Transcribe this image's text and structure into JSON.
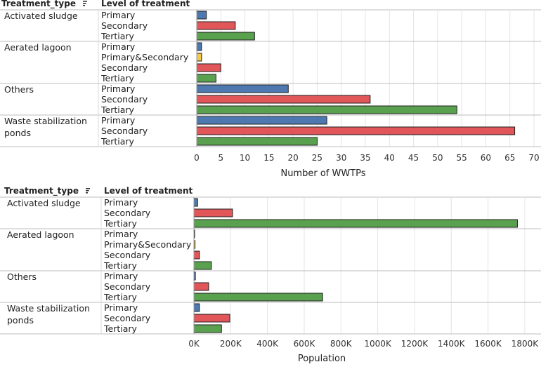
{
  "colors": {
    "Primary": "#4e79b0",
    "Primary&Secondary": "#f2c94c",
    "Secondary": "#e15759",
    "Tertiary": "#59a14f",
    "grid": "#e4e4e4",
    "rowline": "#bdbdbd"
  },
  "sort_icon": "sort-descending-icon",
  "chart_data": [
    {
      "type": "bar",
      "orientation": "horizontal",
      "col1_header": "Treatment_type",
      "col2_header": "Level of treatment",
      "xlabel": "Number of WWTPs",
      "xlim": [
        0,
        70
      ],
      "ticks": [
        "0",
        "5",
        "10",
        "15",
        "20",
        "25",
        "30",
        "35",
        "40",
        "45",
        "50",
        "55",
        "60",
        "65",
        "70"
      ],
      "tick_values": [
        0,
        5,
        10,
        15,
        20,
        25,
        30,
        35,
        40,
        45,
        50,
        55,
        60,
        65,
        70
      ],
      "groups": [
        {
          "name": [
            "Activated sludge"
          ],
          "bars": [
            {
              "level": "Primary",
              "value": 2
            },
            {
              "level": "Secondary",
              "value": 8
            },
            {
              "level": "Tertiary",
              "value": 12
            }
          ]
        },
        {
          "name": [
            "Aerated lagoon"
          ],
          "bars": [
            {
              "level": "Primary",
              "value": 1
            },
            {
              "level": "Primary&Secondary",
              "value": 1
            },
            {
              "level": "Secondary",
              "value": 5
            },
            {
              "level": "Tertiary",
              "value": 4
            }
          ]
        },
        {
          "name": [
            "Others"
          ],
          "bars": [
            {
              "level": "Primary",
              "value": 19
            },
            {
              "level": "Secondary",
              "value": 36
            },
            {
              "level": "Tertiary",
              "value": 54
            }
          ]
        },
        {
          "name": [
            "Waste stabilization",
            "ponds"
          ],
          "bars": [
            {
              "level": "Primary",
              "value": 27
            },
            {
              "level": "Secondary",
              "value": 66
            },
            {
              "level": "Tertiary",
              "value": 25
            }
          ]
        }
      ]
    },
    {
      "type": "bar",
      "orientation": "horizontal",
      "col1_header": "Treatment_type",
      "col2_header": "Level of treatment",
      "xlabel": "Population",
      "xlim": [
        0,
        1850000
      ],
      "ticks": [
        "0K",
        "200K",
        "400K",
        "600K",
        "800K",
        "1000K",
        "1200K",
        "1400K",
        "1600K",
        "1800K"
      ],
      "tick_values": [
        0,
        200000,
        400000,
        600000,
        800000,
        1000000,
        1200000,
        1400000,
        1600000,
        1800000
      ],
      "groups": [
        {
          "name": [
            "Activated sludge"
          ],
          "bars": [
            {
              "level": "Primary",
              "value": 20000
            },
            {
              "level": "Secondary",
              "value": 210000
            },
            {
              "level": "Tertiary",
              "value": 1760000
            }
          ]
        },
        {
          "name": [
            "Aerated lagoon"
          ],
          "bars": [
            {
              "level": "Primary",
              "value": 3000
            },
            {
              "level": "Primary&Secondary",
              "value": 6000
            },
            {
              "level": "Secondary",
              "value": 30000
            },
            {
              "level": "Tertiary",
              "value": 95000
            }
          ]
        },
        {
          "name": [
            "Others"
          ],
          "bars": [
            {
              "level": "Primary",
              "value": 8000
            },
            {
              "level": "Secondary",
              "value": 80000
            },
            {
              "level": "Tertiary",
              "value": 700000
            }
          ]
        },
        {
          "name": [
            "Waste stabilization",
            "ponds"
          ],
          "bars": [
            {
              "level": "Primary",
              "value": 30000
            },
            {
              "level": "Secondary",
              "value": 195000
            },
            {
              "level": "Tertiary",
              "value": 150000
            }
          ]
        }
      ]
    }
  ]
}
